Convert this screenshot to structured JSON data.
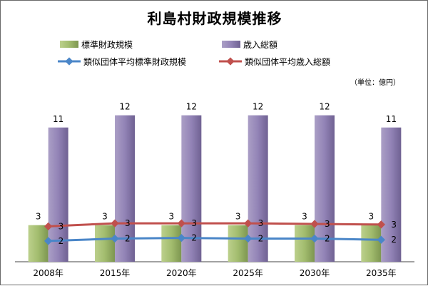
{
  "chart_data": {
    "type": "bar",
    "title": "利島村財政規模推移",
    "unit_label": "（単位：億円）",
    "categories": [
      "2008年",
      "2015年",
      "2020年",
      "2025年",
      "2030年",
      "2035年"
    ],
    "ylim": [
      0,
      14
    ],
    "legend_placement": "top",
    "series": [
      {
        "name": "標準財政規模",
        "kind": "bar",
        "color": "#9fb86a",
        "values": [
          3,
          3,
          3,
          3,
          3,
          3
        ]
      },
      {
        "name": "歳入総額",
        "kind": "bar",
        "color": "#8f7fb0",
        "values": [
          11,
          12,
          12,
          12,
          12,
          11
        ]
      },
      {
        "name": "類似団体平均標準財政規模",
        "kind": "line",
        "color": "#4a86c8",
        "values": [
          1.7,
          1.9,
          1.95,
          1.9,
          1.9,
          1.8
        ],
        "labels": [
          "2",
          "2",
          "2",
          "2",
          "2",
          "2"
        ]
      },
      {
        "name": "類似団体平均歳入総額",
        "kind": "line",
        "color": "#c0504d",
        "values": [
          2.9,
          3.15,
          3.15,
          3.15,
          3.1,
          3.05
        ],
        "labels": [
          "3",
          "3",
          "3",
          "3",
          "3",
          "3"
        ]
      }
    ]
  }
}
